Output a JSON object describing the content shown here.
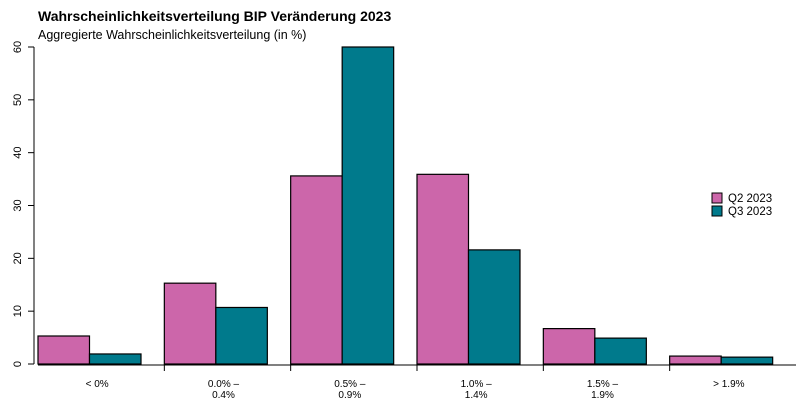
{
  "chart_data": {
    "type": "bar",
    "title": "Wahrscheinlichkeitsverteilung BIP Veränderung 2023",
    "subtitle": "Aggregierte Wahrscheinlichkeitsverteilung (in %)",
    "categories": [
      [
        "< 0%"
      ],
      [
        "0.0% –",
        "0.4%"
      ],
      [
        "0.5% –",
        "0.9%"
      ],
      [
        "1.0% –",
        "1.4%"
      ],
      [
        "1.5% –",
        "1.9%"
      ],
      [
        "> 1.9%"
      ]
    ],
    "series": [
      {
        "name": "Q2 2023",
        "color": "#cc66aa",
        "values": [
          5.3,
          15.3,
          35.6,
          35.9,
          6.7,
          1.5
        ]
      },
      {
        "name": "Q3 2023",
        "color": "#007a8c",
        "values": [
          1.9,
          10.7,
          60.0,
          21.6,
          4.9,
          1.3
        ]
      }
    ],
    "ylim": [
      0,
      60
    ],
    "yticks": [
      0,
      10,
      20,
      30,
      40,
      50,
      60
    ],
    "xlabel": "",
    "ylabel": "",
    "grid": false,
    "legend_position": "right"
  }
}
